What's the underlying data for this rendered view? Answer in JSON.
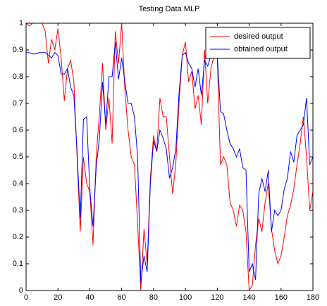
{
  "chart_data": {
    "type": "line",
    "title": "Testing Data MLP",
    "x": [
      0,
      2,
      4,
      6,
      8,
      10,
      12,
      14,
      16,
      18,
      20,
      22,
      24,
      26,
      28,
      30,
      32,
      34,
      36,
      38,
      40,
      42,
      44,
      46,
      48,
      50,
      52,
      54,
      56,
      58,
      60,
      62,
      64,
      66,
      68,
      70,
      72,
      74,
      76,
      78,
      80,
      82,
      84,
      86,
      88,
      90,
      92,
      94,
      96,
      98,
      100,
      102,
      104,
      106,
      108,
      110,
      112,
      114,
      116,
      118,
      120,
      122,
      124,
      126,
      128,
      130,
      132,
      134,
      136,
      138,
      140,
      142,
      144,
      146,
      148,
      150,
      152,
      154,
      156,
      158,
      160,
      162,
      164,
      166,
      168,
      170,
      172,
      174,
      176,
      178,
      180
    ],
    "series": [
      {
        "name": "desired output",
        "color": "#ff0000",
        "values": [
          1,
          0.99,
          1,
          1,
          1,
          1,
          0.97,
          0.85,
          0.94,
          0.9,
          0.98,
          0.87,
          0.71,
          0.83,
          0.86,
          0.78,
          0.5,
          0.22,
          0.5,
          0.4,
          0.37,
          0.17,
          0.5,
          0.66,
          0.85,
          0.6,
          0.72,
          0.55,
          0.97,
          0.85,
          1,
          0.75,
          0.6,
          0.5,
          0.47,
          0.25,
          0,
          0.23,
          0.1,
          0.42,
          0.58,
          0.52,
          0.72,
          0.65,
          0.65,
          0.5,
          0.36,
          0.48,
          0.7,
          0.88,
          0.93,
          0.78,
          0.82,
          0.68,
          0.73,
          0.62,
          0.9,
          0.7,
          0.83,
          0.88,
          0.87,
          0.47,
          0.5,
          0.47,
          0.33,
          0.3,
          0.24,
          0.32,
          0.3,
          0.22,
          0,
          0.02,
          0.17,
          0.27,
          0.22,
          0.33,
          0.4,
          0.23,
          0.15,
          0.1,
          0.13,
          0.2,
          0.28,
          0.32,
          0.38,
          0.47,
          0.55,
          0.65,
          0.5,
          0.3,
          0.37
        ]
      },
      {
        "name": "obtained output",
        "color": "#0000ff",
        "values": [
          0.89,
          0.89,
          0.885,
          0.885,
          0.89,
          0.89,
          0.89,
          0.88,
          0.87,
          0.89,
          0.88,
          0.81,
          0.81,
          0.83,
          0.76,
          0.73,
          0.52,
          0.27,
          0.64,
          0.65,
          0.38,
          0.24,
          0.46,
          0.57,
          0.78,
          0.62,
          0.8,
          0.8,
          0.93,
          0.79,
          0.87,
          0.78,
          0.7,
          0.7,
          0.65,
          0.5,
          0.03,
          0.13,
          0.07,
          0.4,
          0.56,
          0.52,
          0.6,
          0.57,
          0.53,
          0.42,
          0.46,
          0.53,
          0.74,
          0.88,
          0.89,
          0.85,
          0.83,
          0.76,
          0.83,
          0.73,
          0.86,
          0.84,
          0.88,
          0.88,
          0.88,
          0.67,
          0.66,
          0.6,
          0.55,
          0.53,
          0.5,
          0.53,
          0.46,
          0.45,
          0.07,
          0.1,
          0.04,
          0.36,
          0.42,
          0.37,
          0.45,
          0.22,
          0.3,
          0.28,
          0.3,
          0.38,
          0.42,
          0.52,
          0.48,
          0.58,
          0.6,
          0.62,
          0.72,
          0.47,
          0.5
        ]
      }
    ],
    "xlim": [
      0,
      180
    ],
    "xticks": [
      0,
      20,
      40,
      60,
      80,
      100,
      120,
      140,
      160,
      180
    ],
    "ylim": [
      0,
      1
    ],
    "yticks": [
      0,
      0.1,
      0.2,
      0.3,
      0.4,
      0.5,
      0.6,
      0.7,
      0.8,
      0.9,
      1
    ],
    "legend": "upper right"
  }
}
